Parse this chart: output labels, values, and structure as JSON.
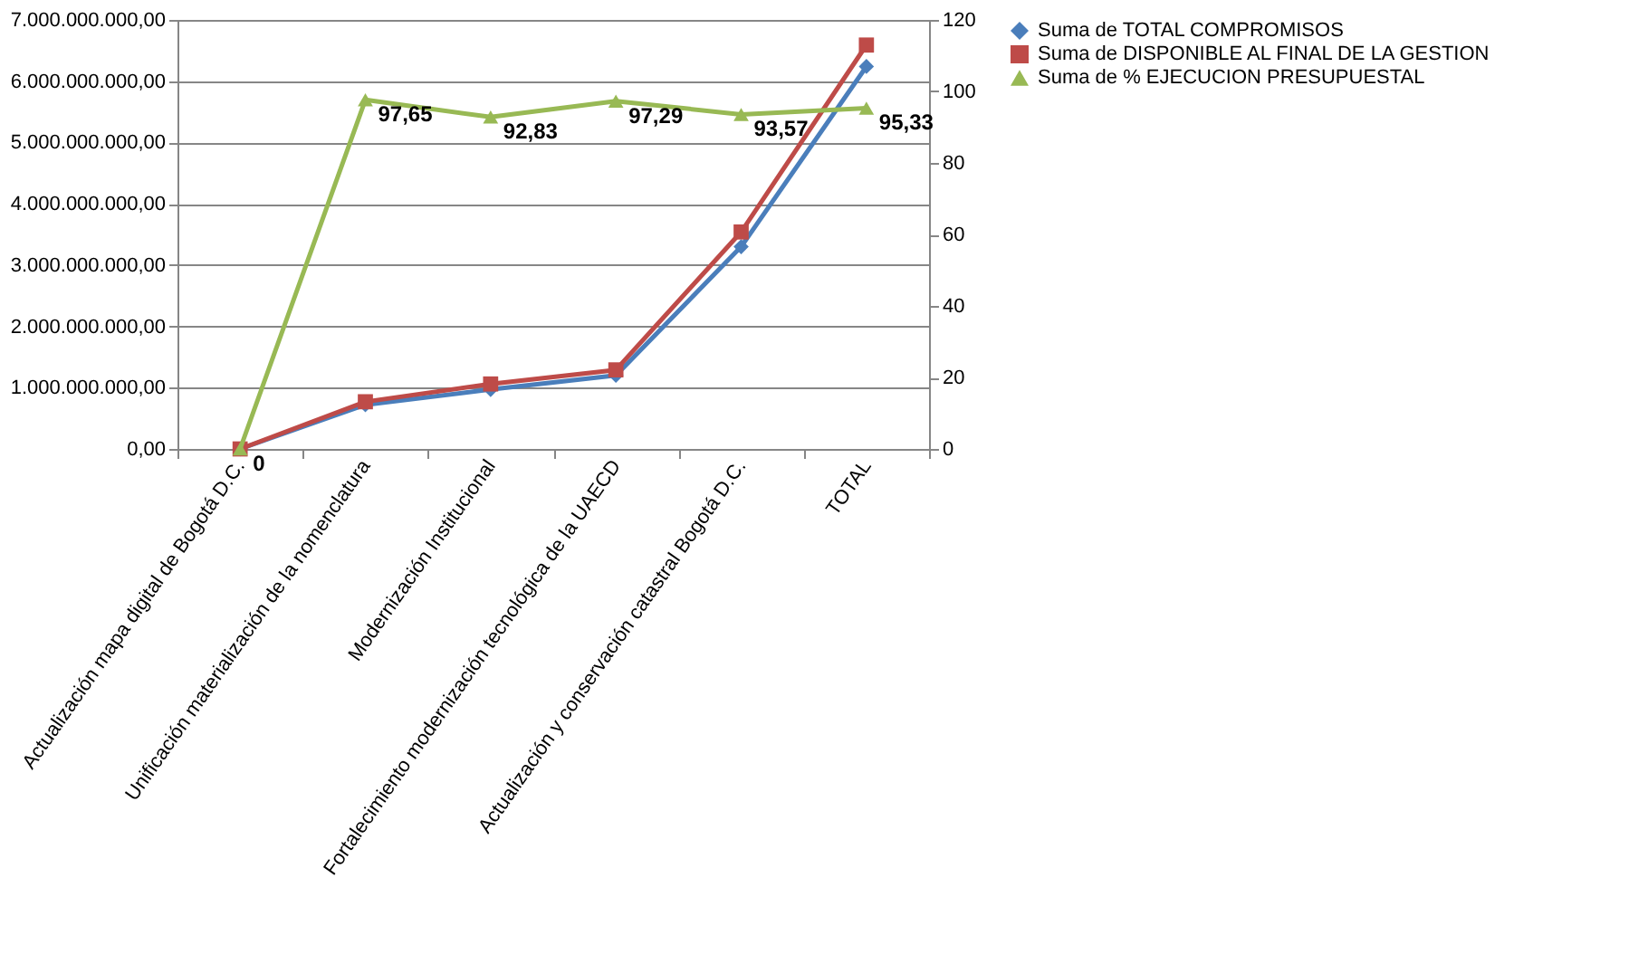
{
  "chart_data": {
    "type": "line",
    "categories": [
      "Actualización mapa digital de Bogotá D.C.",
      "Unificación materialización de la nomenclatura",
      "Modernización Institucional",
      "Fortalecimiento modernización tecnológica de la UAECD",
      "Actualización y conservación catastral Bogotá D.C.",
      "TOTAL"
    ],
    "series": [
      {
        "name": "Suma de TOTAL COMPROMISOS",
        "color": "#4a7ebb",
        "marker": "diamond",
        "values": [
          0,
          720000000,
          970000000,
          1200000000,
          3300000000,
          6240000000
        ]
      },
      {
        "name": "Suma de DISPONIBLE AL FINAL DE LA GESTION",
        "color": "#be4b48",
        "marker": "square",
        "values": [
          0,
          770000000,
          1060000000,
          1290000000,
          3540000000,
          6590000000
        ]
      },
      {
        "name": "Suma de % EJECUCION PRESUPUESTAL",
        "color": "#98b954",
        "marker": "triangle",
        "axis": "y2",
        "values": [
          0,
          97.65,
          92.83,
          97.29,
          93.57,
          95.33
        ],
        "value_labels": [
          "0",
          "97,65",
          "92,83",
          "97,29",
          "93,57",
          "95,33"
        ]
      }
    ],
    "ylim": [
      0,
      7000000000
    ],
    "yticks": [
      {
        "value": 0,
        "label": "0,00"
      },
      {
        "value": 1000000000,
        "label": "1.000.000.000,00"
      },
      {
        "value": 2000000000,
        "label": "2.000.000.000,00"
      },
      {
        "value": 3000000000,
        "label": "3.000.000.000,00"
      },
      {
        "value": 4000000000,
        "label": "4.000.000.000,00"
      },
      {
        "value": 5000000000,
        "label": "5.000.000.000,00"
      },
      {
        "value": 6000000000,
        "label": "6.000.000.000,00"
      },
      {
        "value": 7000000000,
        "label": "7.000.000.000,00"
      }
    ],
    "y2lim": [
      0,
      120
    ],
    "y2ticks": [
      0,
      20,
      40,
      60,
      80,
      100,
      120
    ],
    "grid": "y",
    "legend": "right",
    "line_style": "solid"
  }
}
